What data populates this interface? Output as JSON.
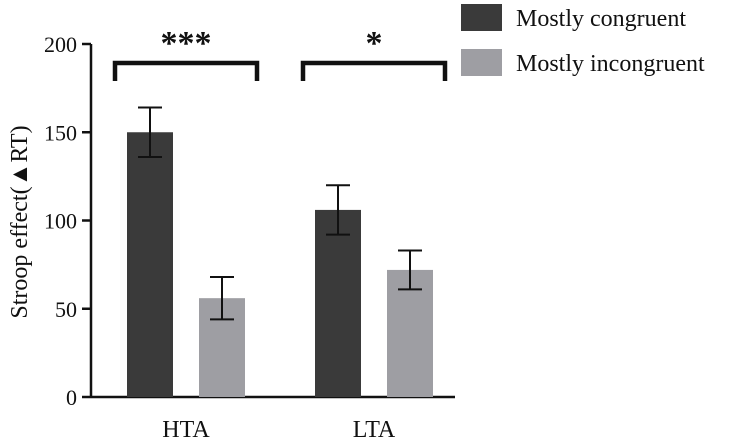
{
  "chart_data": {
    "type": "bar",
    "categories": [
      "HTA",
      "LTA"
    ],
    "series": [
      {
        "name": "Mostly congruent",
        "color": "#3a3a3a",
        "values": [
          150,
          106
        ],
        "errors": [
          14,
          14
        ]
      },
      {
        "name": "Mostly incongruent",
        "color": "#9e9ea3",
        "values": [
          56,
          72
        ],
        "errors": [
          12,
          11
        ]
      }
    ],
    "ylabel": "Stroop effect(▲RT)",
    "xlabel": "",
    "ylim": [
      0,
      200
    ],
    "yticks": [
      0,
      50,
      100,
      150,
      200
    ],
    "ytick_labels": [
      "0",
      "50",
      "100",
      "150",
      "200"
    ],
    "significance": [
      {
        "category": "HTA",
        "label": "***"
      },
      {
        "category": "LTA",
        "label": "*"
      }
    ],
    "legend_position": "top-right"
  }
}
